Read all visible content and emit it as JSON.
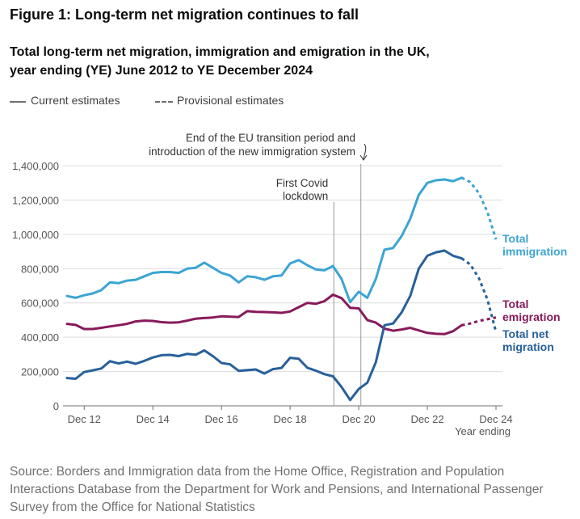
{
  "figure_title": "Figure 1: Long-term net migration continues to fall",
  "chart_title_line1": "Total long-term net migration, immigration and emigration in the UK,",
  "chart_title_line2": "year ending (YE) June 2012 to YE December 2024",
  "legend": {
    "current": "Current estimates",
    "provisional": "Provisional estimates"
  },
  "source": "Source: Borders and Immigration data from the Home Office, Registration and Population Interactions Database from the Department for Work and Pensions, and International Passenger Survey from the Office for National Statistics",
  "chart_data": {
    "type": "line",
    "title": "Total long-term net migration, immigration and emigration in the UK, year ending (YE) June 2012 to YE December 2024",
    "xlabel": "Year ending",
    "ylabel": "",
    "x_tick_labels": [
      "Dec 12",
      "Dec 14",
      "Dec 16",
      "Dec 18",
      "Dec 20",
      "Dec 22",
      "Dec 24"
    ],
    "y_tick_labels": [
      "0",
      "200,000",
      "400,000",
      "600,000",
      "800,000",
      "1,000,000",
      "1,200,000",
      "1,400,000"
    ],
    "ylim": [
      0,
      1400000
    ],
    "grid": true,
    "periods": [
      "YE Jun 2012",
      "YE Sep 2012",
      "YE Dec 2012",
      "YE Mar 2013",
      "YE Jun 2013",
      "YE Sep 2013",
      "YE Dec 2013",
      "YE Mar 2014",
      "YE Jun 2014",
      "YE Sep 2014",
      "YE Dec 2014",
      "YE Mar 2015",
      "YE Jun 2015",
      "YE Sep 2015",
      "YE Dec 2015",
      "YE Mar 2016",
      "YE Jun 2016",
      "YE Sep 2016",
      "YE Dec 2016",
      "YE Mar 2017",
      "YE Jun 2017",
      "YE Sep 2017",
      "YE Dec 2017",
      "YE Mar 2018",
      "YE Jun 2018",
      "YE Sep 2018",
      "YE Dec 2018",
      "YE Mar 2019",
      "YE Jun 2019",
      "YE Sep 2019",
      "YE Dec 2019",
      "YE Mar 2020",
      "YE Jun 2020",
      "YE Sep 2020",
      "YE Dec 2020",
      "YE Mar 2021",
      "YE Jun 2021",
      "YE Sep 2021",
      "YE Dec 2021",
      "YE Mar 2022",
      "YE Jun 2022",
      "YE Sep 2022",
      "YE Dec 2022",
      "YE Mar 2023",
      "YE Jun 2023",
      "YE Sep 2023",
      "YE Dec 2023",
      "YE Mar 2024",
      "YE Jun 2024",
      "YE Sep 2024",
      "YE Dec 2024"
    ],
    "provisional_from_index": 46,
    "series": [
      {
        "name": "Total immigration",
        "color": "#3ba5d3",
        "values": [
          640000,
          630000,
          645000,
          655000,
          675000,
          720000,
          715000,
          730000,
          735000,
          755000,
          775000,
          780000,
          780000,
          775000,
          800000,
          805000,
          835000,
          805000,
          775000,
          760000,
          720000,
          755000,
          750000,
          735000,
          755000,
          760000,
          830000,
          850000,
          820000,
          795000,
          790000,
          815000,
          740000,
          605000,
          665000,
          630000,
          740000,
          910000,
          920000,
          990000,
          1090000,
          1230000,
          1300000,
          1315000,
          1320000,
          1310000,
          1330000,
          1305000,
          1240000,
          1130000,
          970000
        ]
      },
      {
        "name": "Total emigration",
        "color": "#871a5b",
        "values": [
          478000,
          472000,
          448000,
          448000,
          455000,
          463000,
          470000,
          478000,
          492000,
          497000,
          495000,
          488000,
          485000,
          487000,
          497000,
          508000,
          512000,
          515000,
          522000,
          520000,
          518000,
          552000,
          548000,
          547000,
          545000,
          542000,
          550000,
          575000,
          600000,
          595000,
          610000,
          648000,
          628000,
          572000,
          568000,
          500000,
          485000,
          450000,
          438000,
          445000,
          455000,
          440000,
          425000,
          420000,
          418000,
          435000,
          470000,
          480000,
          495000,
          505000,
          515000
        ]
      },
      {
        "name": "Total net migration",
        "color": "#27609a",
        "values": [
          162000,
          158000,
          197000,
          207000,
          218000,
          260000,
          247000,
          258000,
          245000,
          262000,
          282000,
          295000,
          297000,
          290000,
          303000,
          298000,
          323000,
          290000,
          250000,
          242000,
          204000,
          208000,
          212000,
          188000,
          214000,
          221000,
          280000,
          275000,
          222000,
          205000,
          185000,
          172000,
          110000,
          34000,
          98000,
          135000,
          255000,
          470000,
          480000,
          545000,
          640000,
          800000,
          875000,
          895000,
          905000,
          875000,
          860000,
          825000,
          745000,
          620000,
          431000
        ]
      }
    ],
    "annotations": {
      "covid": "First Covid\nlockdown",
      "eu": "End of the EU transition period and\nintroduction of the new immigration system"
    }
  }
}
